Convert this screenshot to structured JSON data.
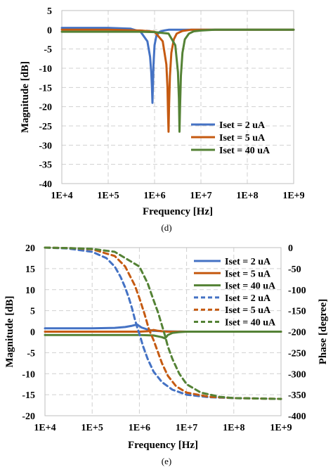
{
  "chart_data": [
    {
      "type": "line",
      "caption": "(d)",
      "xlabel": "Frequency [Hz]",
      "ylabel": "Magnitude [dB]",
      "x_scale": "log",
      "xlim": [
        10000,
        1000000000
      ],
      "ylim": [
        -40,
        5
      ],
      "xticks": [
        10000,
        100000,
        1000000,
        10000000,
        100000000,
        1000000000
      ],
      "xtick_labels": [
        "1E+4",
        "1E+5",
        "1E+6",
        "1E+7",
        "1E+8",
        "1E+9"
      ],
      "yticks": [
        5,
        0,
        -5,
        -10,
        -15,
        -20,
        -25,
        -30,
        -35,
        -40
      ],
      "ytick_labels": [
        "5",
        "0",
        "-5",
        "-10",
        "-15",
        "-20",
        "-25",
        "-30",
        "-35",
        "-40"
      ],
      "grid": true,
      "legend_position": "lower-right",
      "series": [
        {
          "name": "Iset = 2 uA",
          "color": "#4472C4",
          "dash": false,
          "x": [
            10000,
            100000,
            300000,
            500000,
            700000,
            800000,
            850000,
            880000,
            900000,
            920000,
            950000,
            1000000,
            1100000,
            1300000,
            1600000,
            2000000,
            3000000,
            5000000,
            10000000,
            1000000000
          ],
          "y": [
            0.5,
            0.5,
            0.3,
            -0.5,
            -3,
            -7,
            -11,
            -15,
            -19,
            -15,
            -9,
            -4,
            -1.5,
            -0.5,
            -0.2,
            0,
            0,
            0,
            0,
            0
          ]
        },
        {
          "name": "Iset = 5 uA",
          "color": "#C55A11",
          "dash": false,
          "x": [
            10000,
            100000,
            500000,
            1000000,
            1500000,
            1800000,
            1900000,
            1950000,
            2000000,
            2050000,
            2150000,
            2300000,
            2600000,
            3000000,
            4000000,
            6000000,
            10000000,
            1000000000
          ],
          "y": [
            0,
            0,
            -0.2,
            -0.5,
            -3,
            -9,
            -15,
            -21,
            -26.5,
            -20,
            -12,
            -6,
            -2.5,
            -1,
            -0.3,
            0,
            0,
            0
          ]
        },
        {
          "name": "Iset = 40 uA",
          "color": "#548235",
          "dash": false,
          "x": [
            10000,
            100000,
            500000,
            1000000,
            2000000,
            2800000,
            3200000,
            3350000,
            3450000,
            3550000,
            3700000,
            4000000,
            4500000,
            5500000,
            7000000,
            10000000,
            20000000,
            1000000000
          ],
          "y": [
            -0.5,
            -0.5,
            -0.5,
            -0.6,
            -1,
            -4,
            -11,
            -18,
            -26.5,
            -20,
            -12,
            -6,
            -2.5,
            -1,
            -0.4,
            -0.2,
            0,
            0
          ]
        }
      ]
    },
    {
      "type": "line",
      "caption": "(e)",
      "xlabel": "Frequency [Hz]",
      "ylabel": "Magnitude [dB]",
      "y2label": "Phase [degree]",
      "x_scale": "log",
      "xlim": [
        10000,
        1000000000
      ],
      "ylim": [
        -20,
        20
      ],
      "y2lim": [
        -400,
        0
      ],
      "xticks": [
        10000,
        100000,
        1000000,
        10000000,
        100000000,
        1000000000
      ],
      "xtick_labels": [
        "1E+4",
        "1E+5",
        "1E+6",
        "1E+7",
        "1E+8",
        "1E+9"
      ],
      "yticks": [
        20,
        15,
        10,
        5,
        0,
        -5,
        -10,
        -15,
        -20
      ],
      "ytick_labels": [
        "20",
        "15",
        "10",
        "5",
        "0",
        "-5",
        "-10",
        "-15",
        "-20"
      ],
      "y2ticks": [
        0,
        -50,
        -100,
        -150,
        -200,
        -250,
        -300,
        -350,
        -400
      ],
      "y2tick_labels": [
        "0",
        "-50",
        "-100",
        "-150",
        "-200",
        "-250",
        "-300",
        "-350",
        "-400"
      ],
      "grid": true,
      "legend_position": "top-right",
      "series": [
        {
          "name": "Iset = 2 uA",
          "color": "#4472C4",
          "dash": false,
          "axis": "left",
          "x": [
            10000,
            100000,
            300000,
            500000,
            700000,
            900000,
            1100000,
            1500000,
            2000000,
            3000000,
            10000000,
            1000000000
          ],
          "y": [
            0.8,
            0.8,
            0.9,
            1.1,
            1.4,
            1.7,
            1.0,
            0.5,
            0.2,
            0.1,
            0,
            0
          ]
        },
        {
          "name": "Iset = 5 uA",
          "color": "#C55A11",
          "dash": false,
          "axis": "left",
          "x": [
            10000,
            100000,
            1000000,
            1500000,
            2000000,
            2500000,
            3000000,
            4000000,
            10000000,
            1000000000
          ],
          "y": [
            0,
            0,
            0,
            0.1,
            0.4,
            0.2,
            0.1,
            0,
            0,
            0
          ]
        },
        {
          "name": "Iset = 40 uA",
          "color": "#548235",
          "dash": false,
          "axis": "left",
          "x": [
            10000,
            100000,
            1000000,
            2000000,
            3000000,
            3500000,
            4000000,
            5000000,
            7000000,
            10000000,
            1000000000
          ],
          "y": [
            -0.8,
            -0.8,
            -0.8,
            -0.9,
            -1.3,
            -1.6,
            -0.8,
            -0.3,
            -0.1,
            0,
            0
          ]
        },
        {
          "name": "Iset = 2 uA",
          "color": "#4472C4",
          "dash": true,
          "axis": "right",
          "x": [
            10000,
            30000,
            100000,
            200000,
            300000,
            400000,
            500000,
            600000,
            700000,
            800000,
            900000,
            1000000,
            1200000,
            1500000,
            2000000,
            3000000,
            5000000,
            10000000,
            30000000,
            100000000,
            1000000000
          ],
          "y": [
            0,
            -2,
            -10,
            -25,
            -45,
            -70,
            -95,
            -120,
            -145,
            -170,
            -190,
            -205,
            -235,
            -265,
            -295,
            -320,
            -338,
            -350,
            -356,
            -358,
            -360
          ]
        },
        {
          "name": "Iset = 5 uA",
          "color": "#C55A11",
          "dash": true,
          "axis": "right",
          "x": [
            10000,
            30000,
            100000,
            300000,
            500000,
            800000,
            1000000,
            1300000,
            1600000,
            2000000,
            2500000,
            3000000,
            4000000,
            6000000,
            10000000,
            30000000,
            100000000,
            1000000000
          ],
          "y": [
            0,
            -1,
            -4,
            -20,
            -45,
            -90,
            -120,
            -160,
            -195,
            -220,
            -250,
            -275,
            -305,
            -330,
            -345,
            -355,
            -358,
            -360
          ]
        },
        {
          "name": "Iset = 40 uA",
          "color": "#548235",
          "dash": true,
          "axis": "right",
          "x": [
            10000,
            30000,
            100000,
            300000,
            1000000,
            1500000,
            2000000,
            2500000,
            3000000,
            3500000,
            4000000,
            5000000,
            7000000,
            10000000,
            20000000,
            50000000,
            100000000,
            1000000000
          ],
          "y": [
            0,
            -1,
            -3,
            -10,
            -45,
            -85,
            -125,
            -155,
            -185,
            -210,
            -235,
            -265,
            -300,
            -325,
            -345,
            -355,
            -358,
            -360
          ]
        }
      ]
    }
  ]
}
